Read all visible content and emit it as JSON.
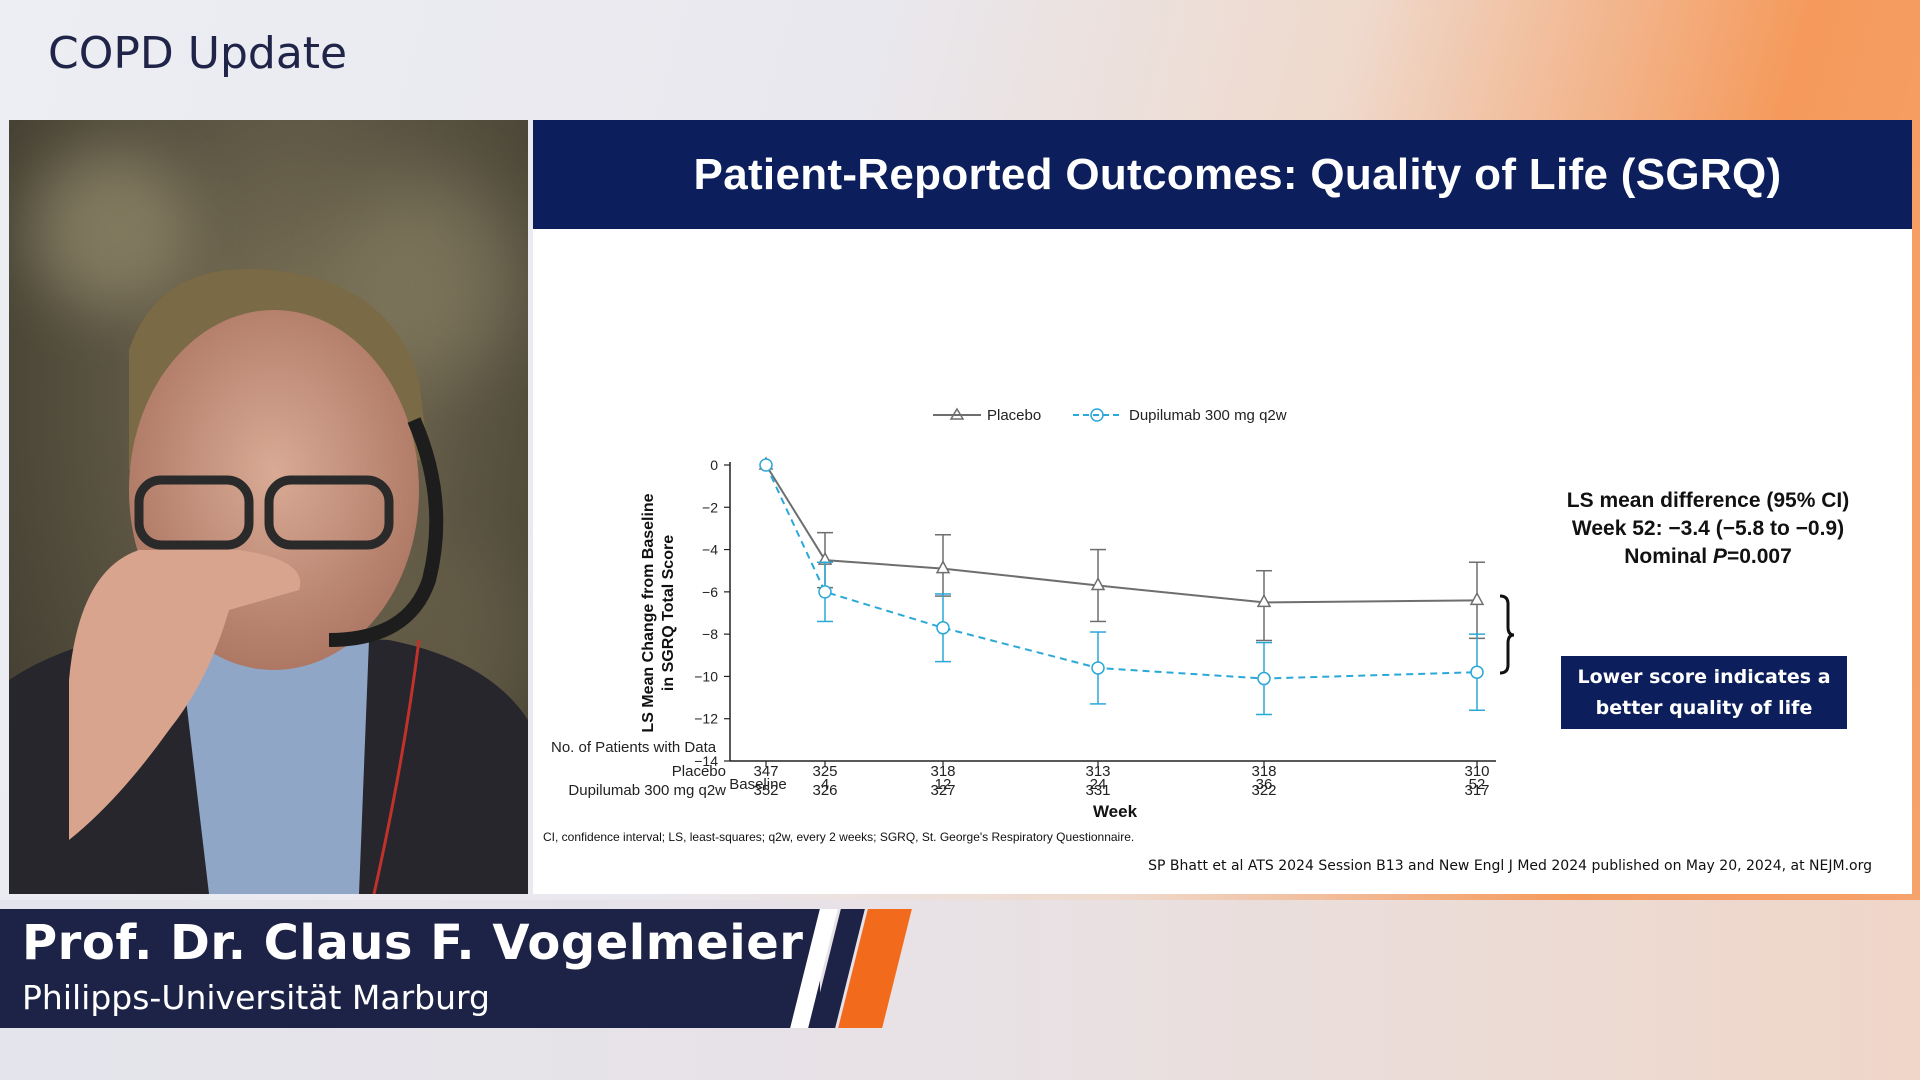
{
  "show_title": "COPD Update",
  "slide": {
    "title": "Patient-Reported Outcomes: Quality of Life (SGRQ)",
    "ls_box": {
      "line1": "LS mean difference (95% CI)",
      "line2": "Week 52: −3.4 (−5.8 to −0.9)",
      "line3_prefix": "Nominal ",
      "line3_p": "P",
      "line3_suffix": "=0.007"
    },
    "lower_box": {
      "line1": "Lower score indicates a",
      "line2": "better quality of life"
    },
    "footnote": "CI, confidence interval; LS, least-squares; q2w, every 2 weeks; SGRQ, St. George's Respiratory Questionnaire.",
    "citation": "SP Bhatt et al ATS 2024 Session B13 and New Engl J Med 2024 published on May 20, 2024, at NEJM.org"
  },
  "speaker": {
    "name": "Prof. Dr. Claus F. Vogelmeier",
    "affiliation": "Philipps-Universität Marburg"
  },
  "colors": {
    "navy": "#0c1e5b",
    "placebo": "#6e6e6e",
    "dupilumab": "#2aa8d8",
    "accent_orange": "#f26a1b"
  },
  "chart_data": {
    "type": "line",
    "xlabel": "Week",
    "ylabel_line1": "LS Mean Change from Baseline",
    "ylabel_line2": "in SGRQ Total Score",
    "x": [
      0,
      4,
      12,
      24,
      36,
      52
    ],
    "x_tick_labels": [
      "Baseline",
      "4",
      "12",
      "24",
      "36",
      "52"
    ],
    "ylim": [
      -14,
      0
    ],
    "y_ticks": [
      0,
      -2,
      -4,
      -6,
      -8,
      -10,
      -12,
      -14
    ],
    "y_tick_labels": [
      "0",
      "−2",
      "−4",
      "−6",
      "−8",
      "−10",
      "−12",
      "−14"
    ],
    "legend_position": "top",
    "series": [
      {
        "name": "Placebo",
        "style": "solid-triangle",
        "values": [
          0,
          -4.5,
          -4.9,
          -5.7,
          -6.5,
          -6.4
        ],
        "ci_low": [
          0,
          -5.8,
          -6.2,
          -7.4,
          -8.3,
          -8.2
        ],
        "ci_high": [
          0,
          -3.2,
          -3.3,
          -4.0,
          -5.0,
          -4.6
        ]
      },
      {
        "name": "Dupilumab 300 mg q2w",
        "style": "dashed-circle",
        "values": [
          0,
          -6.0,
          -7.7,
          -9.6,
          -10.1,
          -9.8
        ],
        "ci_low": [
          0,
          -7.4,
          -9.3,
          -11.3,
          -11.8,
          -11.6
        ],
        "ci_high": [
          0,
          -4.6,
          -6.1,
          -7.9,
          -8.4,
          -8.0
        ]
      }
    ],
    "patients_table": {
      "header": "No. of Patients with Data",
      "rows": [
        {
          "label": "Placebo",
          "values": [
            "347",
            "325",
            "318",
            "313",
            "318",
            "310"
          ]
        },
        {
          "label": "Dupilumab 300 mg q2w",
          "values": [
            "352",
            "326",
            "327",
            "331",
            "322",
            "317"
          ]
        }
      ]
    }
  }
}
